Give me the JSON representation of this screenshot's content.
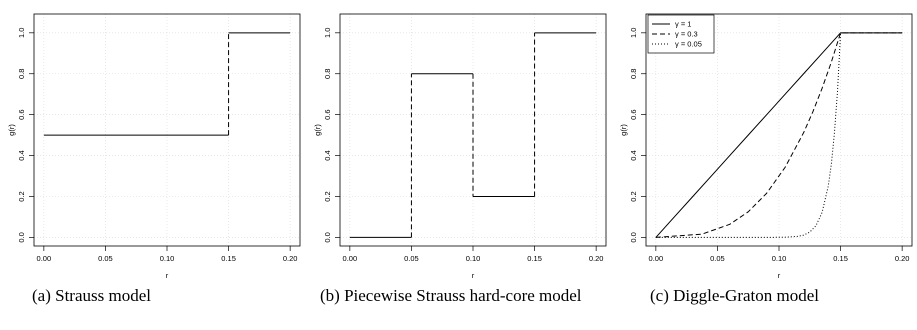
{
  "chart_data": [
    {
      "type": "line",
      "caption": "(a) Strauss model",
      "xlabel": "r",
      "ylabel": "g(r)",
      "xlim": [
        0,
        0.2
      ],
      "ylim": [
        0,
        1.05
      ],
      "x_ticks": [
        "0.00",
        "0.05",
        "0.10",
        "0.15",
        "0.20"
      ],
      "y_ticks": [
        "0.0",
        "0.2",
        "0.4",
        "0.6",
        "0.8",
        "1.0"
      ],
      "grid": true,
      "legend": [],
      "series": [
        {
          "style": "step",
          "segments": [
            {
              "dash": "solid",
              "points": [
                [
                  0,
                  0.5
                ],
                [
                  0.15,
                  0.5
                ]
              ]
            },
            {
              "dash": "dashed",
              "points": [
                [
                  0.15,
                  0.5
                ],
                [
                  0.15,
                  1.0
                ]
              ]
            },
            {
              "dash": "solid",
              "points": [
                [
                  0.15,
                  1.0
                ],
                [
                  0.2,
                  1.0
                ]
              ]
            }
          ]
        }
      ]
    },
    {
      "type": "line",
      "caption": "(b) Piecewise Strauss hard-core model",
      "xlabel": "r",
      "ylabel": "g(r)",
      "xlim": [
        0,
        0.2
      ],
      "ylim": [
        0,
        1.05
      ],
      "x_ticks": [
        "0.00",
        "0.05",
        "0.10",
        "0.15",
        "0.20"
      ],
      "y_ticks": [
        "0.0",
        "0.2",
        "0.4",
        "0.6",
        "0.8",
        "1.0"
      ],
      "grid": true,
      "legend": [],
      "series": [
        {
          "style": "step",
          "segments": [
            {
              "dash": "solid",
              "points": [
                [
                  0,
                  0.0
                ],
                [
                  0.05,
                  0.0
                ]
              ]
            },
            {
              "dash": "dashed",
              "points": [
                [
                  0.05,
                  0.0
                ],
                [
                  0.05,
                  0.8
                ]
              ]
            },
            {
              "dash": "solid",
              "points": [
                [
                  0.05,
                  0.8
                ],
                [
                  0.1,
                  0.8
                ]
              ]
            },
            {
              "dash": "dashed",
              "points": [
                [
                  0.1,
                  0.8
                ],
                [
                  0.1,
                  0.2
                ]
              ]
            },
            {
              "dash": "solid",
              "points": [
                [
                  0.1,
                  0.2
                ],
                [
                  0.15,
                  0.2
                ]
              ]
            },
            {
              "dash": "dashed",
              "points": [
                [
                  0.15,
                  0.2
                ],
                [
                  0.15,
                  1.0
                ]
              ]
            },
            {
              "dash": "solid",
              "points": [
                [
                  0.15,
                  1.0
                ],
                [
                  0.2,
                  1.0
                ]
              ]
            }
          ]
        }
      ]
    },
    {
      "type": "line",
      "caption": "(c) Diggle-Graton model",
      "xlabel": "r",
      "ylabel": "g(r)",
      "xlim": [
        0,
        0.2
      ],
      "ylim": [
        0,
        1.05
      ],
      "x_ticks": [
        "0.00",
        "0.05",
        "0.10",
        "0.15",
        "0.20"
      ],
      "y_ticks": [
        "0.0",
        "0.2",
        "0.4",
        "0.6",
        "0.8",
        "1.0"
      ],
      "grid": true,
      "legend_position": "top-left",
      "legend": [
        {
          "label": "γ = 1",
          "dash": "solid"
        },
        {
          "label": "γ = 0.3",
          "dash": "dashed"
        },
        {
          "label": "γ = 0.05",
          "dash": "dotted"
        }
      ],
      "series": [
        {
          "dash": "solid",
          "points": [
            [
              0,
              0.0
            ],
            [
              0.015,
              0.1
            ],
            [
              0.03,
              0.2
            ],
            [
              0.045,
              0.3
            ],
            [
              0.06,
              0.4
            ],
            [
              0.075,
              0.5
            ],
            [
              0.09,
              0.6
            ],
            [
              0.105,
              0.7
            ],
            [
              0.12,
              0.8
            ],
            [
              0.135,
              0.9
            ],
            [
              0.15,
              1.0
            ],
            [
              0.2,
              1.0
            ]
          ]
        },
        {
          "dash": "dashed",
          "points": [
            [
              0,
              0.0
            ],
            [
              0.0375,
              0.016
            ],
            [
              0.06,
              0.064
            ],
            [
              0.075,
              0.125
            ],
            [
              0.09,
              0.216
            ],
            [
              0.105,
              0.343
            ],
            [
              0.12,
              0.512
            ],
            [
              0.1275,
              0.614
            ],
            [
              0.135,
              0.729
            ],
            [
              0.1425,
              0.857
            ],
            [
              0.15,
              1.0
            ],
            [
              0.2,
              1.0
            ]
          ]
        },
        {
          "dash": "dotted",
          "points": [
            [
              0,
              0.0
            ],
            [
              0.09,
              0.0
            ],
            [
              0.105,
              0.001
            ],
            [
              0.115,
              0.005
            ],
            [
              0.12,
              0.011
            ],
            [
              0.125,
              0.026
            ],
            [
              0.13,
              0.057
            ],
            [
              0.135,
              0.122
            ],
            [
              0.14,
              0.251
            ],
            [
              0.1425,
              0.358
            ],
            [
              0.145,
              0.51
            ],
            [
              0.1475,
              0.714
            ],
            [
              0.15,
              1.0
            ],
            [
              0.2,
              1.0
            ]
          ]
        }
      ]
    }
  ]
}
